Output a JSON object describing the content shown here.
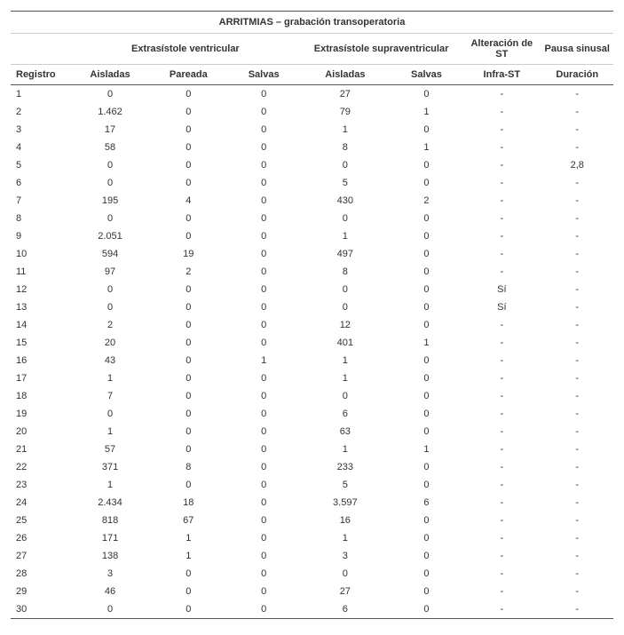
{
  "title": "ARRITMIAS – grabación transoperatoria",
  "groups": {
    "ventricular": "Extrasístole ventricular",
    "supraventricular": "Extrasístole supraventricular",
    "st": "Alteración de ST",
    "pausa": "Pausa sinusal"
  },
  "columns": {
    "registro": "Registro",
    "v_aisladas": "Aisladas",
    "v_pareada": "Pareada",
    "v_salvas": "Salvas",
    "s_aisladas": "Aisladas",
    "s_salvas": "Salvas",
    "infra_st": "Infra-ST",
    "duracion": "Duración"
  },
  "rows": [
    {
      "r": "1",
      "va": "0",
      "vp": "0",
      "vs": "0",
      "sa": "27",
      "ss": "0",
      "st": "-",
      "pa": "-"
    },
    {
      "r": "2",
      "va": "1.462",
      "vp": "0",
      "vs": "0",
      "sa": "79",
      "ss": "1",
      "st": "-",
      "pa": "-"
    },
    {
      "r": "3",
      "va": "17",
      "vp": "0",
      "vs": "0",
      "sa": "1",
      "ss": "0",
      "st": "-",
      "pa": "-"
    },
    {
      "r": "4",
      "va": "58",
      "vp": "0",
      "vs": "0",
      "sa": "8",
      "ss": "1",
      "st": "-",
      "pa": "-"
    },
    {
      "r": "5",
      "va": "0",
      "vp": "0",
      "vs": "0",
      "sa": "0",
      "ss": "0",
      "st": "-",
      "pa": "2,8"
    },
    {
      "r": "6",
      "va": "0",
      "vp": "0",
      "vs": "0",
      "sa": "5",
      "ss": "0",
      "st": "-",
      "pa": "-"
    },
    {
      "r": "7",
      "va": "195",
      "vp": "4",
      "vs": "0",
      "sa": "430",
      "ss": "2",
      "st": "-",
      "pa": "-"
    },
    {
      "r": "8",
      "va": "0",
      "vp": "0",
      "vs": "0",
      "sa": "0",
      "ss": "0",
      "st": "-",
      "pa": "-"
    },
    {
      "r": "9",
      "va": "2.051",
      "vp": "0",
      "vs": "0",
      "sa": "1",
      "ss": "0",
      "st": "-",
      "pa": "-"
    },
    {
      "r": "10",
      "va": "594",
      "vp": "19",
      "vs": "0",
      "sa": "497",
      "ss": "0",
      "st": "-",
      "pa": "-"
    },
    {
      "r": "11",
      "va": "97",
      "vp": "2",
      "vs": "0",
      "sa": "8",
      "ss": "0",
      "st": "-",
      "pa": "-"
    },
    {
      "r": "12",
      "va": "0",
      "vp": "0",
      "vs": "0",
      "sa": "0",
      "ss": "0",
      "st": "Sí",
      "pa": "-"
    },
    {
      "r": "13",
      "va": "0",
      "vp": "0",
      "vs": "0",
      "sa": "0",
      "ss": "0",
      "st": "Sí",
      "pa": "-"
    },
    {
      "r": "14",
      "va": "2",
      "vp": "0",
      "vs": "0",
      "sa": "12",
      "ss": "0",
      "st": "-",
      "pa": "-"
    },
    {
      "r": "15",
      "va": "20",
      "vp": "0",
      "vs": "0",
      "sa": "401",
      "ss": "1",
      "st": "-",
      "pa": "-"
    },
    {
      "r": "16",
      "va": "43",
      "vp": "0",
      "vs": "1",
      "sa": "1",
      "ss": "0",
      "st": "-",
      "pa": "-"
    },
    {
      "r": "17",
      "va": "1",
      "vp": "0",
      "vs": "0",
      "sa": "1",
      "ss": "0",
      "st": "-",
      "pa": "-"
    },
    {
      "r": "18",
      "va": "7",
      "vp": "0",
      "vs": "0",
      "sa": "0",
      "ss": "0",
      "st": "-",
      "pa": "-"
    },
    {
      "r": "19",
      "va": "0",
      "vp": "0",
      "vs": "0",
      "sa": "6",
      "ss": "0",
      "st": "-",
      "pa": "-"
    },
    {
      "r": "20",
      "va": "1",
      "vp": "0",
      "vs": "0",
      "sa": "63",
      "ss": "0",
      "st": "-",
      "pa": "-"
    },
    {
      "r": "21",
      "va": "57",
      "vp": "0",
      "vs": "0",
      "sa": "1",
      "ss": "1",
      "st": "-",
      "pa": "-"
    },
    {
      "r": "22",
      "va": "371",
      "vp": "8",
      "vs": "0",
      "sa": "233",
      "ss": "0",
      "st": "-",
      "pa": "-"
    },
    {
      "r": "23",
      "va": "1",
      "vp": "0",
      "vs": "0",
      "sa": "5",
      "ss": "0",
      "st": "-",
      "pa": "-"
    },
    {
      "r": "24",
      "va": "2.434",
      "vp": "18",
      "vs": "0",
      "sa": "3.597",
      "ss": "6",
      "st": "-",
      "pa": "-"
    },
    {
      "r": "25",
      "va": "818",
      "vp": "67",
      "vs": "0",
      "sa": "16",
      "ss": "0",
      "st": "-",
      "pa": "-"
    },
    {
      "r": "26",
      "va": "171",
      "vp": "1",
      "vs": "0",
      "sa": "1",
      "ss": "0",
      "st": "-",
      "pa": "-"
    },
    {
      "r": "27",
      "va": "138",
      "vp": "1",
      "vs": "0",
      "sa": "3",
      "ss": "0",
      "st": "-",
      "pa": "-"
    },
    {
      "r": "28",
      "va": "3",
      "vp": "0",
      "vs": "0",
      "sa": "0",
      "ss": "0",
      "st": "-",
      "pa": "-"
    },
    {
      "r": "29",
      "va": "46",
      "vp": "0",
      "vs": "0",
      "sa": "27",
      "ss": "0",
      "st": "-",
      "pa": "-"
    },
    {
      "r": "30",
      "va": "0",
      "vp": "0",
      "vs": "0",
      "sa": "6",
      "ss": "0",
      "st": "-",
      "pa": "-"
    }
  ]
}
